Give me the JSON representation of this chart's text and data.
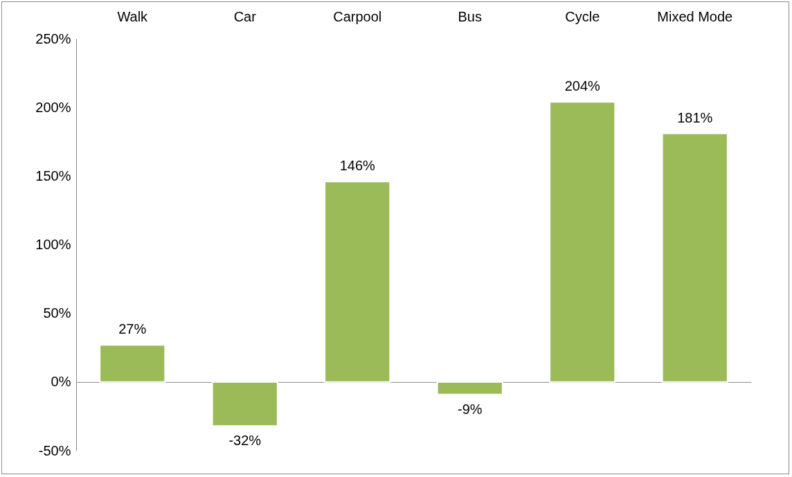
{
  "chart_data": {
    "type": "bar",
    "categories": [
      "Walk",
      "Car",
      "Carpool",
      "Bus",
      "Cycle",
      "Mixed Mode"
    ],
    "values": [
      27,
      -32,
      146,
      -9,
      204,
      181
    ],
    "value_labels": [
      "27%",
      "-32%",
      "146%",
      "-9%",
      "204%",
      "181%"
    ],
    "color": "#9bbb59",
    "ylim": [
      -50,
      250
    ],
    "yticks": [
      {
        "value": -50,
        "label": "-50%"
      },
      {
        "value": 0,
        "label": "0%"
      },
      {
        "value": 50,
        "label": "50%"
      },
      {
        "value": 100,
        "label": "100%"
      },
      {
        "value": 150,
        "label": "150%"
      },
      {
        "value": 200,
        "label": "200%"
      },
      {
        "value": 250,
        "label": "250%"
      }
    ],
    "tick_labels": "xy"
  }
}
